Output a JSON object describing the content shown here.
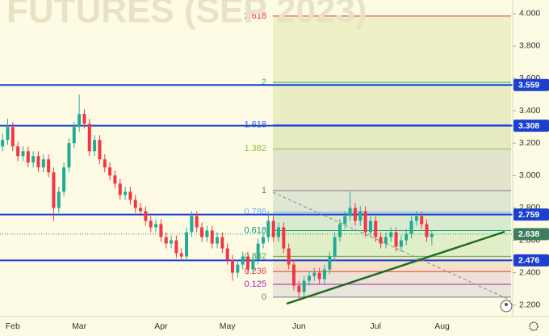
{
  "watermark": "FUTURES (SEP 2023)",
  "chart_data": {
    "type": "candlestick",
    "categories": [
      null,
      null,
      "Feb",
      null,
      null,
      null,
      null,
      null,
      null,
      null,
      null,
      null,
      null,
      null,
      null,
      "Mar",
      null,
      null,
      null,
      null,
      null,
      null,
      null,
      null,
      null,
      null,
      null,
      null,
      null,
      null,
      null,
      "Apr",
      null,
      null,
      null,
      null,
      null,
      null,
      null,
      null,
      null,
      null,
      null,
      null,
      "May",
      null,
      null,
      null,
      null,
      null,
      null,
      null,
      null,
      null,
      null,
      null,
      null,
      null,
      "Jun",
      null,
      null,
      null,
      null,
      null,
      null,
      null,
      null,
      null,
      null,
      null,
      null,
      null,
      null,
      "Jul",
      null,
      null,
      null,
      null,
      null,
      null,
      null,
      null,
      null,
      null,
      null,
      null,
      "Aug",
      null,
      null,
      null,
      null,
      null,
      null,
      null,
      null,
      null,
      null,
      null,
      null,
      null
    ],
    "candles": [
      [
        3.18,
        3.26,
        3.15,
        3.22
      ],
      [
        3.22,
        3.35,
        3.19,
        3.3
      ],
      [
        3.3,
        3.33,
        3.15,
        3.18
      ],
      [
        3.18,
        3.21,
        3.09,
        3.12
      ],
      [
        3.12,
        3.18,
        3.09,
        3.15
      ],
      [
        3.15,
        3.18,
        3.05,
        3.08
      ],
      [
        3.08,
        3.15,
        3.05,
        3.12
      ],
      [
        3.12,
        3.15,
        3.02,
        3.05
      ],
      [
        3.05,
        3.13,
        3.02,
        3.1
      ],
      [
        3.1,
        3.13,
        2.99,
        3.02
      ],
      [
        3.02,
        3.05,
        2.72,
        2.8
      ],
      [
        2.8,
        2.93,
        2.77,
        2.9
      ],
      [
        2.9,
        3.08,
        2.87,
        3.05
      ],
      [
        3.05,
        3.23,
        3.02,
        3.2
      ],
      [
        3.2,
        3.33,
        3.17,
        3.3
      ],
      [
        3.3,
        3.5,
        3.27,
        3.38
      ],
      [
        3.38,
        3.41,
        3.29,
        3.32
      ],
      [
        3.32,
        3.35,
        3.12,
        3.15
      ],
      [
        3.15,
        3.25,
        3.12,
        3.22
      ],
      [
        3.22,
        3.25,
        3.07,
        3.1
      ],
      [
        3.1,
        3.13,
        3.02,
        3.05
      ],
      [
        3.05,
        3.08,
        2.97,
        3.0
      ],
      [
        3.0,
        3.03,
        2.92,
        2.95
      ],
      [
        2.95,
        2.98,
        2.85,
        2.88
      ],
      [
        2.88,
        2.93,
        2.85,
        2.9
      ],
      [
        2.9,
        2.93,
        2.82,
        2.85
      ],
      [
        2.85,
        2.88,
        2.77,
        2.8
      ],
      [
        2.8,
        2.83,
        2.75,
        2.78
      ],
      [
        2.78,
        2.81,
        2.69,
        2.72
      ],
      [
        2.72,
        2.75,
        2.65,
        2.68
      ],
      [
        2.68,
        2.73,
        2.65,
        2.7
      ],
      [
        2.7,
        2.73,
        2.59,
        2.62
      ],
      [
        2.62,
        2.65,
        2.55,
        2.58
      ],
      [
        2.58,
        2.63,
        2.55,
        2.6
      ],
      [
        2.6,
        2.63,
        2.49,
        2.52
      ],
      [
        2.52,
        2.55,
        2.47,
        2.5
      ],
      [
        2.5,
        2.68,
        2.47,
        2.65
      ],
      [
        2.65,
        2.78,
        2.62,
        2.75
      ],
      [
        2.75,
        2.78,
        2.65,
        2.68
      ],
      [
        2.68,
        2.71,
        2.59,
        2.62
      ],
      [
        2.62,
        2.69,
        2.59,
        2.66
      ],
      [
        2.66,
        2.69,
        2.55,
        2.58
      ],
      [
        2.58,
        2.65,
        2.55,
        2.62
      ],
      [
        2.62,
        2.65,
        2.52,
        2.55
      ],
      [
        2.55,
        2.58,
        2.45,
        2.48
      ],
      [
        2.48,
        2.51,
        2.35,
        2.4
      ],
      [
        2.4,
        2.48,
        2.37,
        2.45
      ],
      [
        2.45,
        2.53,
        2.42,
        2.5
      ],
      [
        2.5,
        2.53,
        2.39,
        2.42
      ],
      [
        2.42,
        2.51,
        2.39,
        2.48
      ],
      [
        2.48,
        2.61,
        2.45,
        2.58
      ],
      [
        2.58,
        2.65,
        2.55,
        2.62
      ],
      [
        2.62,
        2.78,
        2.59,
        2.72
      ],
      [
        2.72,
        2.75,
        2.59,
        2.62
      ],
      [
        2.62,
        2.71,
        2.59,
        2.68
      ],
      [
        2.68,
        2.71,
        2.52,
        2.55
      ],
      [
        2.55,
        2.58,
        2.42,
        2.45
      ],
      [
        2.45,
        2.48,
        2.29,
        2.32
      ],
      [
        2.32,
        2.35,
        2.24,
        2.28
      ],
      [
        2.28,
        2.38,
        2.25,
        2.35
      ],
      [
        2.35,
        2.41,
        2.32,
        2.38
      ],
      [
        2.38,
        2.43,
        2.35,
        2.4
      ],
      [
        2.4,
        2.43,
        2.33,
        2.36
      ],
      [
        2.36,
        2.45,
        2.33,
        2.42
      ],
      [
        2.42,
        2.53,
        2.39,
        2.5
      ],
      [
        2.5,
        2.65,
        2.47,
        2.62
      ],
      [
        2.62,
        2.73,
        2.59,
        2.7
      ],
      [
        2.7,
        2.78,
        2.67,
        2.75
      ],
      [
        2.75,
        2.9,
        2.72,
        2.8
      ],
      [
        2.8,
        2.83,
        2.69,
        2.72
      ],
      [
        2.72,
        2.81,
        2.69,
        2.78
      ],
      [
        2.78,
        2.81,
        2.62,
        2.65
      ],
      [
        2.65,
        2.75,
        2.62,
        2.72
      ],
      [
        2.72,
        2.75,
        2.59,
        2.62
      ],
      [
        2.62,
        2.65,
        2.55,
        2.58
      ],
      [
        2.58,
        2.65,
        2.55,
        2.62
      ],
      [
        2.62,
        2.68,
        2.59,
        2.65
      ],
      [
        2.65,
        2.68,
        2.53,
        2.56
      ],
      [
        2.56,
        2.63,
        2.53,
        2.6
      ],
      [
        2.6,
        2.67,
        2.57,
        2.64
      ],
      [
        2.64,
        2.75,
        2.61,
        2.72
      ],
      [
        2.72,
        2.78,
        2.69,
        2.75
      ],
      [
        2.75,
        2.78,
        2.67,
        2.7
      ],
      [
        2.7,
        2.73,
        2.59,
        2.62
      ],
      [
        2.62,
        2.66,
        2.57,
        2.638
      ],
      null,
      null,
      null,
      null,
      null,
      null,
      null,
      null,
      null,
      null,
      null,
      null,
      null,
      null,
      null
    ],
    "up_color": "#22ab94",
    "down_color": "#f23645",
    "ylim": [
      2.1287,
      4.0841
    ],
    "yticks": [
      {
        "value": 4,
        "label": "4.000"
      },
      {
        "value": 3.8,
        "label": "3.800"
      },
      {
        "value": 3.6,
        "label": "3.600"
      },
      {
        "value": 3.4,
        "label": "3.400"
      },
      {
        "value": 3.2,
        "label": "3.200"
      },
      {
        "value": 3,
        "label": "3.000"
      },
      {
        "value": 2.8,
        "label": "2.800"
      },
      {
        "value": 2.6,
        "label": "2.600"
      },
      {
        "value": 2.4,
        "label": "2.400"
      },
      {
        "value": 2.2,
        "label": "2.200"
      }
    ],
    "fib_levels": [
      {
        "ratio": 2.618,
        "price": 3.985,
        "color": "#e53935"
      },
      {
        "ratio": 2,
        "price": 3.575,
        "color": "#26a69a"
      },
      {
        "ratio": 1.618,
        "price": 3.313,
        "color": "#2962ff"
      },
      {
        "ratio": 1.382,
        "price": 3.165,
        "color": "#8bc34a"
      },
      {
        "ratio": 1,
        "price": 2.907,
        "color": "#787b86"
      },
      {
        "ratio": 0.786,
        "price": 2.773,
        "color": "#64b5f6"
      },
      {
        "ratio": 0.618,
        "price": 2.66,
        "color": "#089981"
      },
      {
        "ratio": 0.382,
        "price": 2.501,
        "color": "#4caf50"
      },
      {
        "ratio": 0.236,
        "price": 2.407,
        "color": "#f23645"
      },
      {
        "ratio": 0.125,
        "price": 2.328,
        "color": "#9c27b0"
      },
      {
        "ratio": 0,
        "price": 2.249,
        "color": "#787b86"
      }
    ],
    "fib_band_colors": [
      "#eef0c6",
      "#eaedc4",
      "#e6ebbf",
      "#e3e3cc",
      "#dfe6d4",
      "#d9ebcf",
      "#e1efc9",
      "#f4e2c6",
      "#eee2d8",
      "#e9e5db"
    ],
    "price_lines": [
      {
        "value": 3.559,
        "color": "#1c3fcf"
      },
      {
        "value": 3.308,
        "color": "#1c3fcf"
      },
      {
        "value": 2.759,
        "color": "#1c3fcf"
      },
      {
        "value": 2.476,
        "color": "#1c3fcf"
      }
    ],
    "last_price": {
      "value": 2.638,
      "color": "#3e7d5e"
    }
  }
}
